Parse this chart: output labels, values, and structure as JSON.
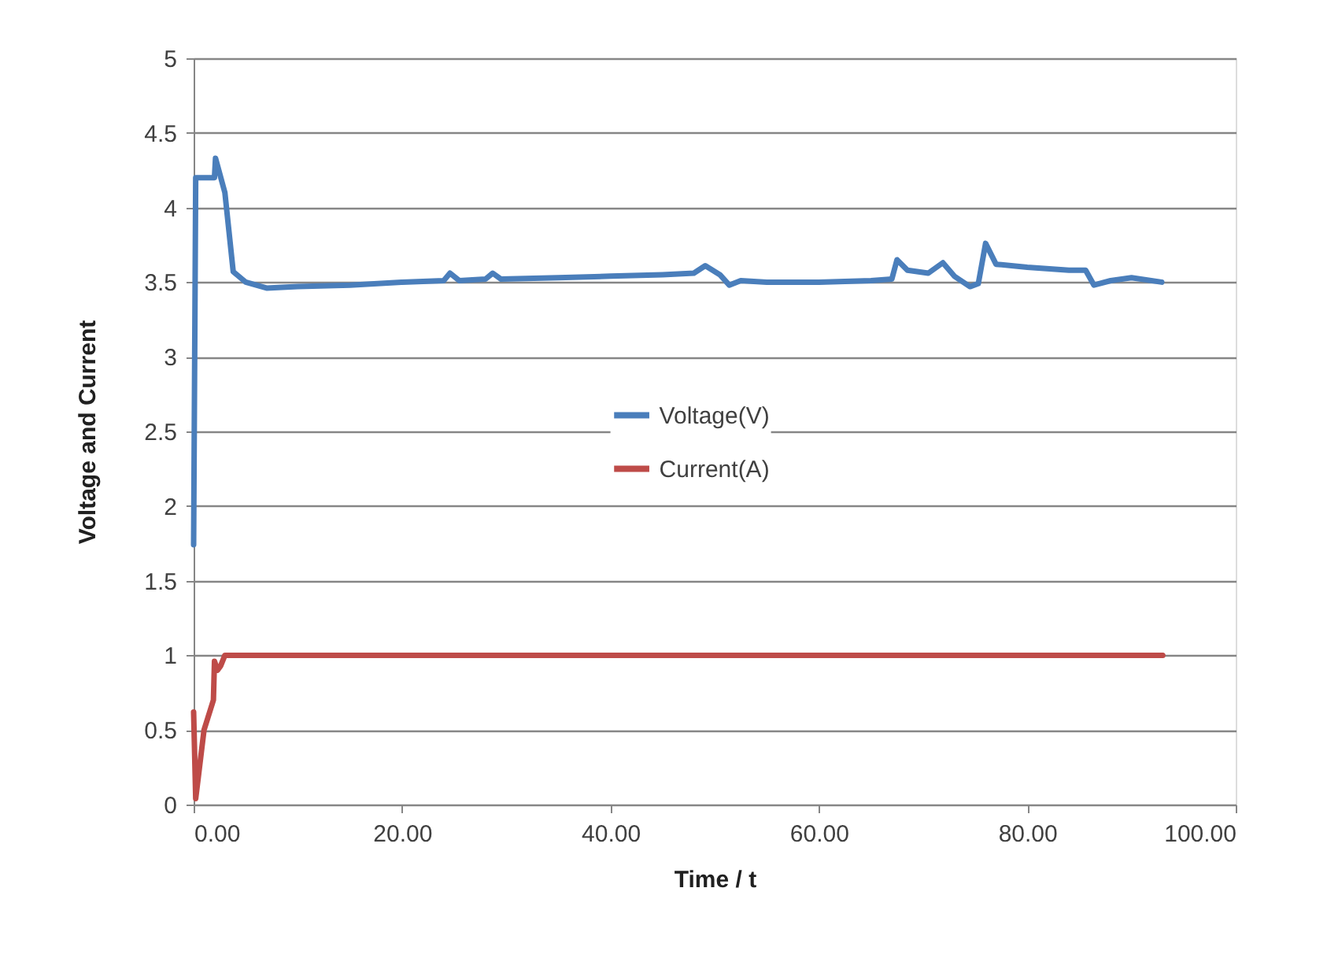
{
  "chart_data": {
    "type": "line",
    "xlabel": "Time / t",
    "ylabel": "Voltage and Current",
    "xlim": [
      0,
      100
    ],
    "ylim": [
      0,
      5
    ],
    "xticks": [
      {
        "value": 0,
        "label": "0.00"
      },
      {
        "value": 20,
        "label": "20.00"
      },
      {
        "value": 40,
        "label": "40.00"
      },
      {
        "value": 60,
        "label": "60.00"
      },
      {
        "value": 80,
        "label": "80.00"
      },
      {
        "value": 100,
        "label": "100.00"
      }
    ],
    "yticks": [
      0,
      0.5,
      1,
      1.5,
      2,
      2.5,
      3,
      3.5,
      4,
      4.5,
      5
    ],
    "grid": "y",
    "legend": "center",
    "marker": "none",
    "line_style": "solid",
    "series": [
      {
        "name": "Voltage(V)",
        "color": "#4a7ebb",
        "x": [
          0,
          0.2,
          1,
          2,
          2.1,
          3,
          3.8,
          5,
          7,
          10,
          15,
          20,
          24,
          24.6,
          25.5,
          28,
          28.7,
          29.5,
          35,
          40,
          45,
          48,
          49.1,
          50.5,
          51.4,
          52.5,
          55,
          60,
          65,
          67,
          67.5,
          68.5,
          70.5,
          71.9,
          73,
          74.5,
          75.3,
          76,
          77,
          80,
          84,
          85.6,
          86.4,
          88,
          90,
          92.9
        ],
        "values": [
          1.74,
          4.2,
          4.2,
          4.2,
          4.33,
          4.1,
          3.57,
          3.5,
          3.46,
          3.47,
          3.48,
          3.5,
          3.51,
          3.56,
          3.51,
          3.52,
          3.56,
          3.52,
          3.53,
          3.54,
          3.55,
          3.56,
          3.61,
          3.55,
          3.48,
          3.51,
          3.5,
          3.5,
          3.51,
          3.52,
          3.65,
          3.58,
          3.56,
          3.63,
          3.54,
          3.47,
          3.49,
          3.76,
          3.62,
          3.6,
          3.58,
          3.58,
          3.48,
          3.51,
          3.53,
          3.5
        ]
      },
      {
        "name": "Current(A)",
        "color": "#be4b48",
        "x": [
          0,
          0.2,
          1,
          1.9,
          2,
          2.3,
          2.6,
          3,
          10,
          50,
          93
        ],
        "values": [
          0.62,
          0.04,
          0.5,
          0.7,
          0.96,
          0.9,
          0.93,
          1,
          1,
          1,
          1
        ]
      }
    ]
  }
}
